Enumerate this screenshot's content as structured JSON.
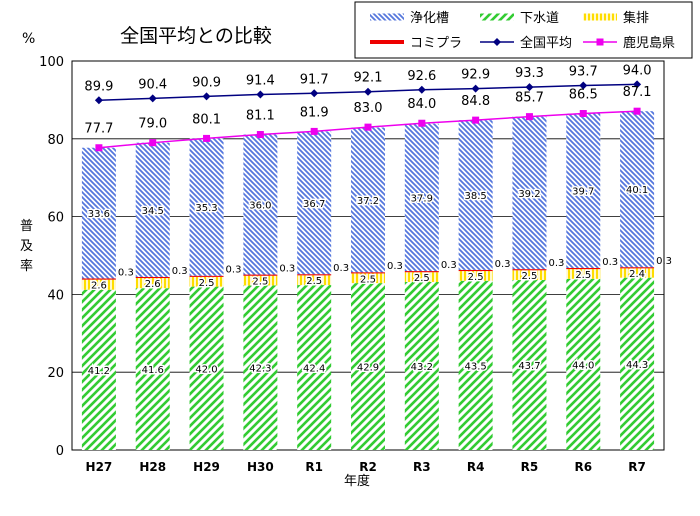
{
  "chart_data": {
    "type": "bar",
    "title": "全国平均との比較",
    "y_unit": "%",
    "ylabel": "普及率",
    "xlabel": "年度",
    "ylim": [
      0,
      100
    ],
    "yticks": [
      0,
      20,
      40,
      60,
      80,
      100
    ],
    "grid": true,
    "legend_position": "top-right",
    "categories": [
      "H27",
      "H28",
      "H29",
      "H30",
      "R1",
      "R2",
      "R3",
      "R4",
      "R5",
      "R6",
      "R7"
    ],
    "series": [
      {
        "name": "下水道",
        "kind": "bar",
        "color": "#33cc33",
        "pattern": "diag-right",
        "values": [
          41.2,
          41.6,
          42.0,
          42.3,
          42.4,
          42.9,
          43.2,
          43.5,
          43.7,
          44.0,
          44.3
        ]
      },
      {
        "name": "集排",
        "kind": "bar",
        "color": "#ffdd00",
        "pattern": "vertical",
        "values": [
          2.6,
          2.6,
          2.5,
          2.5,
          2.5,
          2.5,
          2.5,
          2.5,
          2.5,
          2.5,
          2.4
        ]
      },
      {
        "name": "コミプラ",
        "kind": "bar",
        "color": "#ee0000",
        "pattern": "solid",
        "values": [
          0.3,
          0.3,
          0.3,
          0.3,
          0.3,
          0.3,
          0.3,
          0.3,
          0.3,
          0.3,
          0.3
        ]
      },
      {
        "name": "浄化槽",
        "kind": "bar",
        "color": "#5577dd",
        "pattern": "diag-left",
        "values": [
          33.6,
          34.5,
          35.3,
          36.0,
          36.7,
          37.2,
          37.9,
          38.5,
          39.2,
          39.7,
          40.1
        ]
      },
      {
        "name": "全国平均",
        "kind": "line",
        "color": "#000080",
        "marker": "diamond",
        "values": [
          89.9,
          90.4,
          90.9,
          91.4,
          91.7,
          92.1,
          92.6,
          92.9,
          93.3,
          93.7,
          94.0
        ]
      },
      {
        "name": "鹿児島県",
        "kind": "line",
        "color": "#ee00ee",
        "marker": "square",
        "values": [
          77.7,
          79.0,
          80.1,
          81.1,
          81.9,
          83.0,
          84.0,
          84.8,
          85.7,
          86.5,
          87.1
        ]
      }
    ]
  }
}
